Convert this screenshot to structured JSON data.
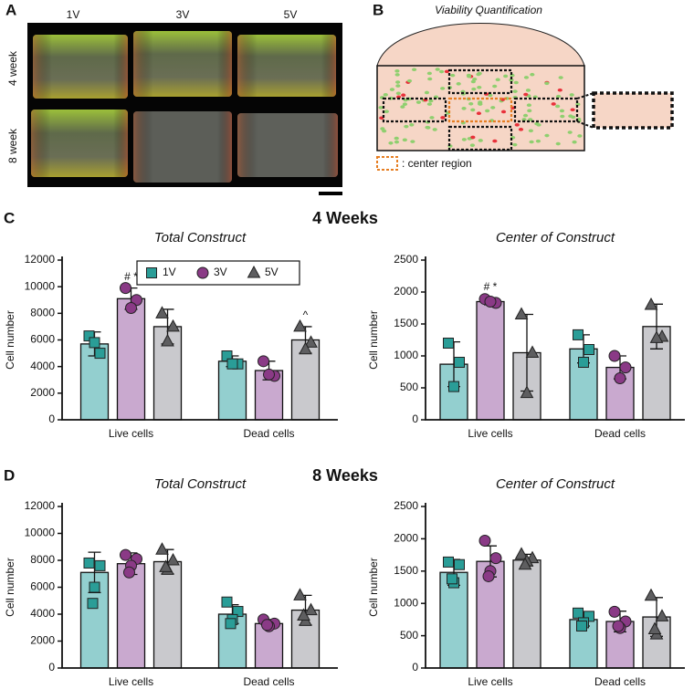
{
  "panel_a": {
    "label": "A",
    "columns": [
      "1V",
      "3V",
      "5V"
    ],
    "rows": [
      "4 week",
      "8 week"
    ]
  },
  "panel_b": {
    "label": "B",
    "title": "Viability Quantification",
    "legend": ": center region"
  },
  "panel_c": {
    "label": "C",
    "title": "4 Weeks"
  },
  "panel_d": {
    "label": "D",
    "title": "8 Weeks"
  },
  "chart_data": [
    {
      "type": "bar",
      "title": "Total Construct",
      "y_label": "Cell number",
      "categories": [
        "Live cells",
        "Dead cells"
      ],
      "ylim": [
        0,
        12000
      ],
      "yticks": [
        0,
        2000,
        4000,
        6000,
        8000,
        10000,
        12000
      ],
      "legend": "top",
      "series": [
        {
          "name": "1V",
          "color": "#93cfcf",
          "marker": "square",
          "marker_color": "#2a9d97",
          "values": [
            5700,
            4400
          ],
          "errors": [
            900,
            400
          ],
          "points": [
            [
              6300,
              5000,
              5800
            ],
            [
              4800,
              4200,
              4200
            ]
          ]
        },
        {
          "name": "3V",
          "color": "#c9a9cf",
          "marker": "circle",
          "marker_color": "#8a3a86",
          "values": [
            9100,
            3700
          ],
          "errors": [
            800,
            700
          ],
          "points": [
            [
              9900,
              9000,
              8400
            ],
            [
              4400,
              3300,
              3400
            ]
          ],
          "annotations": [
            "# *",
            null
          ]
        },
        {
          "name": "5V",
          "color": "#c9c9cd",
          "marker": "triangle",
          "marker_color": "#5e5e60",
          "values": [
            7000,
            6000
          ],
          "errors": [
            1300,
            1000
          ],
          "points": [
            [
              8000,
              7000,
              5900
            ],
            [
              7000,
              5800,
              5300
            ]
          ],
          "annotations": [
            null,
            "^"
          ]
        }
      ]
    },
    {
      "type": "bar",
      "title": "Center of Construct",
      "y_label": "Cell number",
      "categories": [
        "Live cells",
        "Dead cells"
      ],
      "ylim": [
        0,
        2500
      ],
      "yticks": [
        0,
        500,
        1000,
        1500,
        2000,
        2500
      ],
      "series": [
        {
          "color": "#93cfcf",
          "marker": "square",
          "marker_color": "#2a9d97",
          "values": [
            870,
            1110
          ],
          "errors": [
            350,
            220
          ],
          "points": [
            [
              1200,
              900,
              520
            ],
            [
              1330,
              1100,
              900
            ]
          ]
        },
        {
          "color": "#c9a9cf",
          "marker": "circle",
          "marker_color": "#8a3a86",
          "values": [
            1850,
            820
          ],
          "errors": [
            50,
            180
          ],
          "points": [
            [
              1890,
              1830,
              1850
            ],
            [
              1000,
              820,
              650
            ]
          ],
          "annotations": [
            "# *",
            null
          ]
        },
        {
          "color": "#c9c9cd",
          "marker": "triangle",
          "marker_color": "#5e5e60",
          "values": [
            1050,
            1460
          ],
          "errors": [
            600,
            350
          ],
          "points": [
            [
              1650,
              1050,
              420
            ],
            [
              1800,
              1300,
              1280
            ]
          ]
        }
      ]
    },
    {
      "type": "bar",
      "title": "Total Construct",
      "y_label": "Cell number",
      "categories": [
        "Live cells",
        "Dead cells"
      ],
      "ylim": [
        0,
        12000
      ],
      "yticks": [
        0,
        2000,
        4000,
        6000,
        8000,
        10000,
        12000
      ],
      "series": [
        {
          "color": "#93cfcf",
          "marker": "square",
          "marker_color": "#2a9d97",
          "values": [
            7100,
            4000
          ],
          "errors": [
            1500,
            700
          ],
          "points": [
            [
              7800,
              7600,
              6000,
              4800
            ],
            [
              4900,
              4200,
              3600,
              3300
            ]
          ]
        },
        {
          "color": "#c9a9cf",
          "marker": "circle",
          "marker_color": "#8a3a86",
          "values": [
            7750,
            3300
          ],
          "errors": [
            800,
            300
          ],
          "points": [
            [
              8400,
              8100,
              7600,
              7100
            ],
            [
              3600,
              3300,
              3100,
              3200
            ]
          ]
        },
        {
          "color": "#c9c9cd",
          "marker": "triangle",
          "marker_color": "#5e5e60",
          "values": [
            7900,
            4300
          ],
          "errors": [
            900,
            1100
          ],
          "points": [
            [
              8800,
              8000,
              7300,
              7500
            ],
            [
              5400,
              4300,
              3500,
              3900
            ]
          ]
        }
      ]
    },
    {
      "type": "bar",
      "title": "Center of Construct",
      "y_label": "Cell number",
      "categories": [
        "Live cells",
        "Dead cells"
      ],
      "ylim": [
        0,
        2500
      ],
      "yticks": [
        0,
        500,
        1000,
        1500,
        2000,
        2500
      ],
      "series": [
        {
          "color": "#93cfcf",
          "marker": "square",
          "marker_color": "#2a9d97",
          "values": [
            1480,
            750
          ],
          "errors": [
            200,
            100
          ],
          "points": [
            [
              1640,
              1600,
              1320,
              1380
            ],
            [
              850,
              800,
              700,
              650
            ]
          ]
        },
        {
          "color": "#c9a9cf",
          "marker": "circle",
          "marker_color": "#8a3a86",
          "values": [
            1650,
            720
          ],
          "errors": [
            240,
            160
          ],
          "points": [
            [
              1970,
              1700,
              1500,
              1420
            ],
            [
              870,
              720,
              620,
              650
            ]
          ]
        },
        {
          "color": "#c9c9cd",
          "marker": "triangle",
          "marker_color": "#5e5e60",
          "values": [
            1670,
            790
          ],
          "errors": [
            90,
            300
          ],
          "points": [
            [
              1760,
              1700,
              1650,
              1600
            ],
            [
              1120,
              800,
              520,
              600
            ]
          ]
        }
      ]
    }
  ]
}
